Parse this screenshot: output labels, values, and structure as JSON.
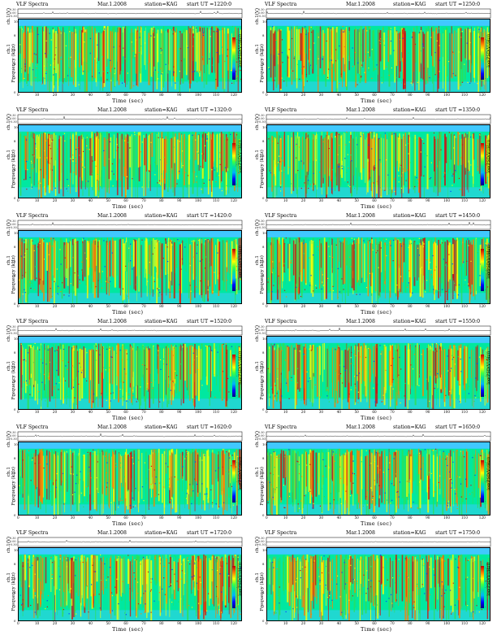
{
  "common": {
    "title": "VLF Spectra",
    "date": "Mar.1.2008",
    "station": "station=KAG",
    "ch_label": "ch.1(V)",
    "ts_ticks": [
      "0.30",
      "0.00",
      "-0.30"
    ],
    "ch1": "ch.1",
    "freq_label": "Frequency  (kHz)",
    "time_label": "Time  (sec)",
    "colorbar_label": "log(PSD(V²/Hz))",
    "colorbar_ticks": [
      "-",
      "-",
      "-"
    ],
    "freq_ticks": [
      "10",
      "8",
      "6",
      "4",
      "2",
      "0"
    ],
    "time_ticks": [
      "0",
      "10",
      "20",
      "30",
      "40",
      "50",
      "60",
      "70",
      "80",
      "90",
      "100",
      "110",
      "120"
    ]
  },
  "colors": {
    "background": "#00e8a0",
    "cyan": "#40c8ff",
    "green": "#30e050",
    "yellow": "#ffff00",
    "orange": "#ff8000",
    "red": "#d01010",
    "blue": "#0040ff"
  },
  "chart_data": [
    {
      "type": "heatmap",
      "start": "start  UT  =1220:0",
      "xlim": [
        0,
        120
      ],
      "ylim": [
        0,
        10
      ],
      "xlabel": "Time  (sec)",
      "ylabel": "Frequency  (kHz)"
    },
    {
      "type": "heatmap",
      "start": "start  UT  =1250:0",
      "xlim": [
        0,
        120
      ],
      "ylim": [
        0,
        10
      ],
      "xlabel": "Time  (sec)",
      "ylabel": "Frequency  (kHz)"
    },
    {
      "type": "heatmap",
      "start": "start  UT  =1320:0",
      "xlim": [
        0,
        120
      ],
      "ylim": [
        0,
        10
      ],
      "xlabel": "Time  (sec)",
      "ylabel": "Frequency  (kHz)"
    },
    {
      "type": "heatmap",
      "start": "start  UT  =1350:0",
      "xlim": [
        0,
        120
      ],
      "ylim": [
        0,
        10
      ],
      "xlabel": "Time  (sec)",
      "ylabel": "Frequency  (kHz)"
    },
    {
      "type": "heatmap",
      "start": "start  UT  =1420:0",
      "xlim": [
        0,
        120
      ],
      "ylim": [
        0,
        10
      ],
      "xlabel": "Time  (sec)",
      "ylabel": "Frequency  (kHz)"
    },
    {
      "type": "heatmap",
      "start": "start  UT  =1450:0",
      "xlim": [
        0,
        120
      ],
      "ylim": [
        0,
        10
      ],
      "xlabel": "Time  (sec)",
      "ylabel": "Frequency  (kHz)"
    },
    {
      "type": "heatmap",
      "start": "start  UT  =1520:0",
      "xlim": [
        0,
        120
      ],
      "ylim": [
        0,
        10
      ],
      "xlabel": "Time  (sec)",
      "ylabel": "Frequency  (kHz)"
    },
    {
      "type": "heatmap",
      "start": "start  UT  =1550:0",
      "xlim": [
        0,
        120
      ],
      "ylim": [
        0,
        10
      ],
      "xlabel": "Time  (sec)",
      "ylabel": "Frequency  (kHz)"
    },
    {
      "type": "heatmap",
      "start": "start  UT  =1620:0",
      "xlim": [
        0,
        120
      ],
      "ylim": [
        0,
        10
      ],
      "xlabel": "Time  (sec)",
      "ylabel": "Frequency  (kHz)"
    },
    {
      "type": "heatmap",
      "start": "start  UT  =1650:0",
      "xlim": [
        0,
        120
      ],
      "ylim": [
        0,
        10
      ],
      "xlabel": "Time  (sec)",
      "ylabel": "Frequency  (kHz)"
    },
    {
      "type": "heatmap",
      "start": "start  UT  =1720:0",
      "xlim": [
        0,
        120
      ],
      "ylim": [
        0,
        10
      ],
      "xlabel": "Time  (sec)",
      "ylabel": "Frequency  (kHz)"
    },
    {
      "type": "heatmap",
      "start": "start  UT  =1750:0",
      "xlim": [
        0,
        120
      ],
      "ylim": [
        0,
        10
      ],
      "xlabel": "Time  (sec)",
      "ylabel": "Frequency  (kHz)"
    }
  ]
}
